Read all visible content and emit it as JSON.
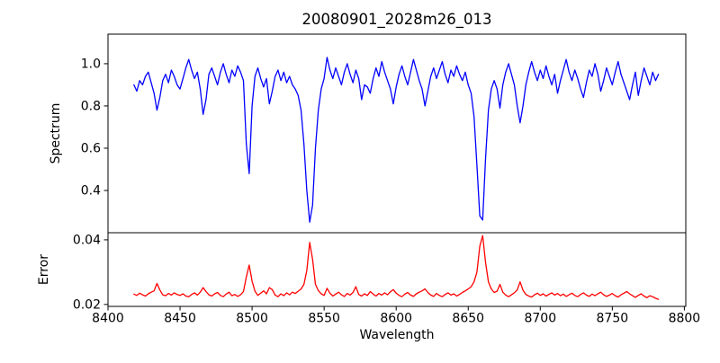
{
  "chart_data": {
    "type": "line",
    "title": "20080901_2028m26_013",
    "xlabel": "Wavelength",
    "x_start": 8418,
    "x_step": 2,
    "xlim": [
      8400,
      8801
    ],
    "xticks": [
      8400,
      8450,
      8500,
      8550,
      8600,
      8650,
      8700,
      8750,
      8800
    ],
    "xticklabels": [
      "8400",
      "8450",
      "8500",
      "8550",
      "8600",
      "8650",
      "8700",
      "8750",
      "8800"
    ],
    "grid": false,
    "legend": "none",
    "panels": [
      {
        "name": "spectrum",
        "ylabel": "Spectrum",
        "color": "#0000ff",
        "ylim": [
          0.2,
          1.14
        ],
        "yticks": [
          0.4,
          0.6,
          0.8,
          1.0
        ],
        "yticklabels": [
          "0.4",
          "0.6",
          "0.8",
          "1.0"
        ]
      },
      {
        "name": "error",
        "ylabel": "Error",
        "color": "#ff0000",
        "ylim": [
          0.0194,
          0.0422
        ],
        "yticks": [
          0.02,
          0.04
        ],
        "yticklabels": [
          "0.02",
          "0.04"
        ]
      }
    ],
    "series": {
      "spectrum": [
        0.9,
        0.87,
        0.92,
        0.9,
        0.94,
        0.96,
        0.91,
        0.86,
        0.78,
        0.84,
        0.92,
        0.95,
        0.91,
        0.97,
        0.94,
        0.9,
        0.88,
        0.93,
        0.98,
        1.02,
        0.97,
        0.93,
        0.96,
        0.88,
        0.76,
        0.83,
        0.95,
        0.98,
        0.94,
        0.9,
        0.96,
        1.0,
        0.95,
        0.91,
        0.97,
        0.94,
        0.99,
        0.96,
        0.92,
        0.62,
        0.48,
        0.8,
        0.94,
        0.98,
        0.93,
        0.89,
        0.93,
        0.81,
        0.87,
        0.94,
        0.97,
        0.92,
        0.96,
        0.91,
        0.94,
        0.9,
        0.88,
        0.85,
        0.78,
        0.62,
        0.4,
        0.25,
        0.33,
        0.6,
        0.78,
        0.88,
        0.93,
        1.03,
        0.97,
        0.93,
        0.98,
        0.94,
        0.9,
        0.96,
        1.0,
        0.95,
        0.91,
        0.97,
        0.93,
        0.83,
        0.9,
        0.89,
        0.86,
        0.93,
        0.98,
        0.94,
        1.01,
        0.96,
        0.92,
        0.88,
        0.81,
        0.89,
        0.95,
        0.99,
        0.94,
        0.9,
        0.96,
        1.02,
        0.97,
        0.92,
        0.88,
        0.8,
        0.87,
        0.94,
        0.98,
        0.93,
        0.97,
        1.01,
        0.95,
        0.91,
        0.97,
        0.94,
        0.99,
        0.95,
        0.92,
        0.96,
        0.9,
        0.86,
        0.75,
        0.52,
        0.28,
        0.26,
        0.55,
        0.78,
        0.88,
        0.92,
        0.88,
        0.79,
        0.9,
        0.96,
        1.0,
        0.95,
        0.9,
        0.8,
        0.72,
        0.8,
        0.9,
        0.96,
        1.01,
        0.96,
        0.92,
        0.97,
        0.93,
        0.99,
        0.94,
        0.9,
        0.95,
        0.86,
        0.92,
        0.97,
        1.02,
        0.96,
        0.92,
        0.97,
        0.93,
        0.88,
        0.84,
        0.91,
        0.97,
        0.94,
        1.0,
        0.95,
        0.87,
        0.92,
        0.98,
        0.94,
        0.9,
        0.96,
        1.01,
        0.95,
        0.91,
        0.87,
        0.83,
        0.9,
        0.96,
        0.85,
        0.92,
        0.98,
        0.94,
        0.9,
        0.96,
        0.92,
        0.95
      ],
      "error": [
        0.0232,
        0.0228,
        0.0235,
        0.023,
        0.0226,
        0.0233,
        0.0238,
        0.0242,
        0.0265,
        0.0245,
        0.023,
        0.0227,
        0.0234,
        0.0229,
        0.0236,
        0.0231,
        0.0228,
        0.0233,
        0.0226,
        0.0224,
        0.0231,
        0.0236,
        0.0229,
        0.0238,
        0.0252,
        0.024,
        0.023,
        0.0226,
        0.0233,
        0.0237,
        0.0228,
        0.0224,
        0.0232,
        0.0238,
        0.0227,
        0.0231,
        0.0225,
        0.023,
        0.024,
        0.0285,
        0.0322,
        0.0272,
        0.0241,
        0.0228,
        0.0235,
        0.0242,
        0.0233,
        0.0252,
        0.0246,
        0.0229,
        0.0224,
        0.0233,
        0.0227,
        0.0236,
        0.023,
        0.0238,
        0.0234,
        0.0241,
        0.0248,
        0.0262,
        0.0305,
        0.0392,
        0.034,
        0.0262,
        0.0243,
        0.0233,
        0.0228,
        0.025,
        0.0235,
        0.0226,
        0.0232,
        0.0238,
        0.023,
        0.0225,
        0.0234,
        0.0229,
        0.0237,
        0.0255,
        0.0231,
        0.0226,
        0.0233,
        0.0228,
        0.024,
        0.0232,
        0.0226,
        0.0234,
        0.0229,
        0.0236,
        0.023,
        0.0239,
        0.0246,
        0.0235,
        0.0228,
        0.0224,
        0.0232,
        0.0237,
        0.0229,
        0.0225,
        0.0233,
        0.0238,
        0.0242,
        0.0248,
        0.0237,
        0.0229,
        0.0225,
        0.0234,
        0.0228,
        0.0224,
        0.0231,
        0.0236,
        0.0229,
        0.0233,
        0.0226,
        0.0231,
        0.0237,
        0.0242,
        0.0248,
        0.0255,
        0.027,
        0.03,
        0.038,
        0.0413,
        0.033,
        0.027,
        0.0248,
        0.0237,
        0.0241,
        0.0262,
        0.0238,
        0.0229,
        0.0224,
        0.023,
        0.0236,
        0.0245,
        0.027,
        0.0244,
        0.0231,
        0.0226,
        0.0223,
        0.023,
        0.0235,
        0.0228,
        0.0233,
        0.0226,
        0.0231,
        0.0236,
        0.0229,
        0.0234,
        0.0227,
        0.0232,
        0.0225,
        0.023,
        0.0235,
        0.0228,
        0.0224,
        0.0231,
        0.0236,
        0.0229,
        0.0225,
        0.0232,
        0.0227,
        0.0233,
        0.0238,
        0.023,
        0.0225,
        0.0229,
        0.0234,
        0.0227,
        0.0223,
        0.023,
        0.0235,
        0.024,
        0.0233,
        0.0227,
        0.0222,
        0.0228,
        0.0233,
        0.0226,
        0.0221,
        0.0227,
        0.0224,
        0.0219,
        0.0216
      ]
    }
  }
}
